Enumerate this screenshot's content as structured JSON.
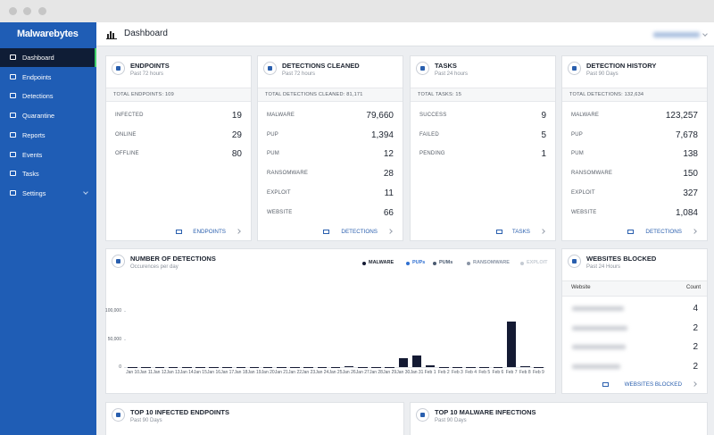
{
  "sidebar": {
    "logo": "Malwarebytes",
    "menu": [
      "Dashboard",
      "Endpoints",
      "Detections",
      "Quarantine",
      "Reports",
      "Events",
      "Tasks",
      "Settings"
    ]
  },
  "header": {
    "title": "Dashboard"
  },
  "cards": [
    {
      "title": "ENDPOINTS",
      "subtitle": "Past 72 hours",
      "total": "TOTAL ENDPOINTS: 109",
      "rows": [
        [
          "INFECTED",
          "19"
        ],
        [
          "ONLINE",
          "29"
        ],
        [
          "OFFLINE",
          "80"
        ]
      ],
      "link": "ENDPOINTS"
    },
    {
      "title": "DETECTIONS CLEANED",
      "subtitle": "Past 72 hours",
      "total": "TOTAL DETECTIONS CLEANED: 81,171",
      "rows": [
        [
          "MALWARE",
          "79,660"
        ],
        [
          "PUP",
          "1,394"
        ],
        [
          "PUM",
          "12"
        ],
        [
          "RANSOMWARE",
          "28"
        ],
        [
          "EXPLOIT",
          "11"
        ],
        [
          "WEBSITE",
          "66"
        ]
      ],
      "link": "DETECTIONS"
    },
    {
      "title": "TASKS",
      "subtitle": "Past 24 hours",
      "total": "TOTAL TASKS: 15",
      "rows": [
        [
          "SUCCESS",
          "9"
        ],
        [
          "FAILED",
          "5"
        ],
        [
          "PENDING",
          "1"
        ]
      ],
      "link": "TASKS"
    },
    {
      "title": "DETECTION HISTORY",
      "subtitle": "Past 90 Days",
      "total": "TOTAL DETECTIONS: 132,634",
      "rows": [
        [
          "MALWARE",
          "123,257"
        ],
        [
          "PUP",
          "7,678"
        ],
        [
          "PUM",
          "138"
        ],
        [
          "RANSOMWARE",
          "150"
        ],
        [
          "EXPLOIT",
          "327"
        ],
        [
          "WEBSITE",
          "1,084"
        ]
      ],
      "link": "DETECTIONS"
    }
  ],
  "chart_data": {
    "type": "bar",
    "title": "NUMBER OF DETECTIONS",
    "subtitle": "Occurences per day",
    "categories": [
      "Jan 10",
      "Jan 11",
      "Jan 12",
      "Jan 13",
      "Jan 14",
      "Jan 15",
      "Jan 16",
      "Jan 17",
      "Jan 18",
      "Jan 19",
      "Jan 20",
      "Jan 21",
      "Jan 22",
      "Jan 23",
      "Jan 24",
      "Jan 25",
      "Jan 26",
      "Jan 27",
      "Jan 28",
      "Jan 29",
      "Jan 30",
      "Jan 31",
      "Feb 1",
      "Feb 2",
      "Feb 3",
      "Feb 4",
      "Feb 5",
      "Feb 6",
      "Feb 7",
      "Feb 8",
      "Feb 9"
    ],
    "series": [
      {
        "name": "MALWARE",
        "color": "#141a33",
        "values": [
          300,
          200,
          300,
          200,
          300,
          200,
          300,
          400,
          300,
          200,
          300,
          300,
          200,
          300,
          300,
          400,
          1000,
          400,
          600,
          300,
          16000,
          20500,
          3000,
          300,
          300,
          300,
          300,
          400,
          81000,
          1500,
          300
        ]
      }
    ],
    "legend_extra": [
      {
        "name": "PUPs",
        "color": "#2f6fd1"
      },
      {
        "name": "PUMs",
        "color": "#4a5a70"
      },
      {
        "name": "RANSOMWARE",
        "color": "#8a95a5"
      },
      {
        "name": "EXPLOIT",
        "color": "#c5cbd3"
      }
    ],
    "ylim": [
      0,
      150000
    ],
    "yticks": [
      0,
      {
        "value": 50000,
        "label": "50,000"
      },
      {
        "value": 100000,
        "label": "100,000"
      }
    ]
  },
  "websites": {
    "title": "WEBSITES BLOCKED",
    "subtitle": "Past 24 Hours",
    "columns": [
      "Website",
      "Count"
    ],
    "counts": [
      "4",
      "2",
      "2",
      "2"
    ],
    "link": "WEBSITES BLOCKED"
  },
  "bottom_cards": [
    {
      "title": "TOP 10 INFECTED ENDPOINTS",
      "subtitle": "Past 90 Days"
    },
    {
      "title": "TOP 10 MALWARE INFECTIONS",
      "subtitle": "Past 90 Days"
    }
  ]
}
